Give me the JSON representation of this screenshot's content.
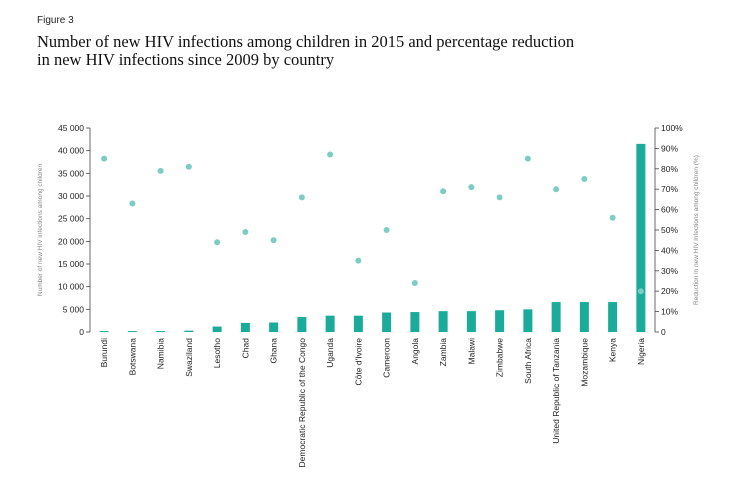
{
  "figure_label": "Figure 3",
  "title_line1": "Number of new HIV infections among children in 2015 and percentage reduction",
  "title_line2": "in new HIV infections since 2009 by country",
  "colors": {
    "bar": "#1aab9b",
    "dot": "#7ccdc4",
    "axis": "#444444"
  },
  "chart_data": {
    "type": "bar",
    "title": "Number of new HIV infections among children in 2015 and percentage reduction in new HIV infections since 2009 by country",
    "categories": [
      "Burundi",
      "Botswana",
      "Namibia",
      "Swaziland",
      "Lesotho",
      "Chad",
      "Ghana",
      "Democratic Republic of the Congo",
      "Uganda",
      "Côte d'Ivoire",
      "Cameroon",
      "Angola",
      "Zambia",
      "Malawi",
      "Zimbabwe",
      "South Africa",
      "United Republic of Tanzania",
      "Mozambique",
      "Kenya",
      "Nigeria"
    ],
    "series": [
      {
        "name": "Number of new HIV infections among children",
        "type": "bar",
        "axis": "left",
        "values": [
          200,
          200,
          200,
          300,
          1200,
          2000,
          2100,
          3300,
          3600,
          3600,
          4300,
          4400,
          4600,
          4600,
          4800,
          5000,
          6600,
          6600,
          6600,
          41500
        ]
      },
      {
        "name": "Reduction in new HIV infections among children (%)",
        "type": "scatter",
        "axis": "right",
        "values": [
          85,
          63,
          79,
          81,
          44,
          49,
          45,
          66,
          87,
          35,
          50,
          24,
          69,
          71,
          66,
          85,
          70,
          75,
          56,
          20
        ]
      }
    ],
    "ylabel": "Number of new HIV infections among children",
    "y2label": "Reduction in new HIV infections among children (%)",
    "ylim": [
      0,
      45000
    ],
    "y2lim": [
      0,
      100
    ],
    "yticks": [
      "0",
      "5 000",
      "10 000",
      "15 000",
      "20 000",
      "25 000",
      "30 000",
      "35 000",
      "40 000",
      "45 000"
    ],
    "y2ticks": [
      "0",
      "10%",
      "20%",
      "30%",
      "40%",
      "50%",
      "60%",
      "70%",
      "80%",
      "90%",
      "100%"
    ]
  }
}
